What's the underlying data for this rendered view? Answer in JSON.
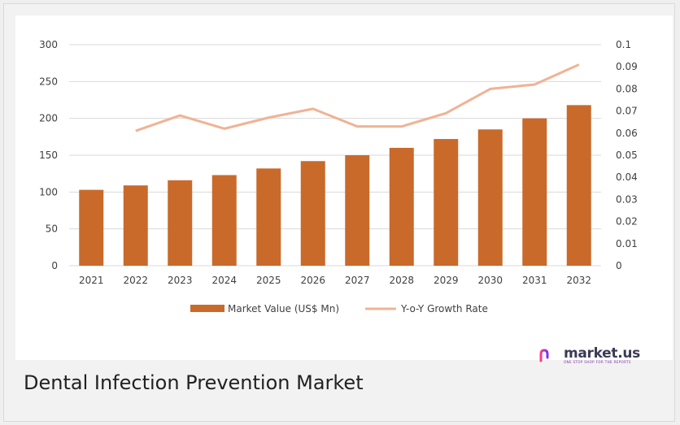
{
  "caption": "Dental Infection Prevention Market",
  "logo": {
    "text": "market.us",
    "tagline": "ONE STOP SHOP FOR THE REPORTS"
  },
  "colors": {
    "bar": "#c96a2b",
    "line": "#f0b394",
    "grid": "#d9d9d9",
    "text": "#404040"
  },
  "chart_data": {
    "type": "bar",
    "title": "",
    "categories": [
      "2021",
      "2022",
      "2023",
      "2024",
      "2025",
      "2026",
      "2027",
      "2028",
      "2029",
      "2030",
      "2031",
      "2032"
    ],
    "series": [
      {
        "name": "Market Value (US$ Mn)",
        "type": "bar",
        "axis": "left",
        "values": [
          103,
          109,
          116,
          123,
          132,
          142,
          150,
          160,
          172,
          185,
          200,
          218
        ]
      },
      {
        "name": "Y-o-Y Growth Rate",
        "type": "line",
        "axis": "right",
        "values": [
          null,
          0.061,
          0.068,
          0.062,
          0.067,
          0.071,
          0.063,
          0.063,
          0.069,
          0.08,
          0.082,
          0.091
        ]
      }
    ],
    "ylim": [
      0,
      300
    ],
    "yticks": [
      "0",
      "50",
      "100",
      "150",
      "200",
      "250",
      "300"
    ],
    "y2lim": [
      0,
      0.1
    ],
    "y2ticks": [
      "0",
      "0.01",
      "0.02",
      "0.03",
      "0.04",
      "0.05",
      "0.06",
      "0.07",
      "0.08",
      "0.09",
      "0.1"
    ],
    "grid": true,
    "legend_position": "bottom"
  }
}
